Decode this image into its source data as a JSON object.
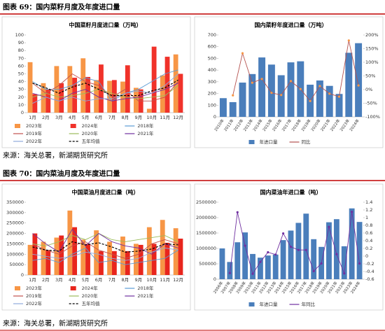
{
  "captions": [
    "图表 69：国内菜籽月度及年度进口量",
    "图表 70：国内菜油月度及年度进口量"
  ],
  "sources": [
    "来源：海关总署，新湖期货研究所",
    "来源：海关总署，新湖期货研究所"
  ],
  "chart_data": [
    {
      "type": "combo",
      "title": "中国菜籽月度进口量（万吨）",
      "legend": "bottom",
      "categories": [
        "1月",
        "2月",
        "3月",
        "4月",
        "5月",
        "6月",
        "7月",
        "8月",
        "9月",
        "10月",
        "11月",
        "12月"
      ],
      "ylim": [
        0,
        100
      ],
      "yticks": [
        0,
        10,
        20,
        30,
        40,
        50,
        60,
        70,
        80,
        90,
        100
      ],
      "series": [
        {
          "name": "2023年",
          "kind": "bar",
          "color": "#f79646",
          "values": [
            65,
            38,
            60,
            60,
            70,
            42,
            41,
            40,
            32,
            5,
            48,
            75
          ]
        },
        {
          "name": "2024年",
          "kind": "bar",
          "color": "#f0322a",
          "values": [
            24,
            30,
            38,
            45,
            46,
            62,
            42,
            61,
            30,
            85,
            72,
            50
          ]
        },
        {
          "name": "2018年",
          "kind": "line",
          "color": "#5b9bd5",
          "values": [
            40,
            30,
            30,
            35,
            45,
            40,
            15,
            25,
            30,
            40,
            50,
            55
          ]
        },
        {
          "name": "2019年",
          "kind": "line",
          "color": "#c0504d",
          "values": [
            38,
            25,
            35,
            50,
            40,
            35,
            20,
            30,
            15,
            15,
            20,
            40
          ]
        },
        {
          "name": "2020年",
          "kind": "line",
          "color": "#9bbb59",
          "values": [
            20,
            25,
            20,
            22,
            25,
            30,
            25,
            20,
            18,
            20,
            22,
            35
          ]
        },
        {
          "name": "2021年",
          "kind": "line",
          "color": "#7030a0",
          "values": [
            25,
            20,
            15,
            25,
            30,
            20,
            15,
            18,
            20,
            25,
            30,
            38
          ]
        },
        {
          "name": "2022年",
          "kind": "line",
          "color": "#8faadc",
          "values": [
            12,
            20,
            15,
            20,
            15,
            18,
            18,
            25,
            28,
            25,
            35,
            50
          ]
        },
        {
          "name": "五年均值",
          "kind": "line",
          "color": "#000000",
          "dash": true,
          "values": [
            38,
            32,
            25,
            33,
            38,
            30,
            22,
            22,
            22,
            28,
            32,
            42
          ]
        }
      ]
    },
    {
      "type": "combo",
      "title": "国内菜籽年度进口量（万吨）",
      "legend": "bottom",
      "categories": [
        "2010年",
        "2011年",
        "2012年",
        "2013年",
        "2014年",
        "2015年",
        "2016年",
        "2017年",
        "2018年",
        "2019年",
        "2020年",
        "2021年",
        "2022年",
        "2023年",
        "2024年"
      ],
      "ylim": [
        0,
        700
      ],
      "yticks": [
        0,
        100,
        200,
        300,
        400,
        500,
        600,
        700
      ],
      "y2lim": [
        -100,
        200
      ],
      "y2ticks": [
        {
          "value": -100,
          "label": "-100%"
        },
        {
          "value": -50,
          "label": "-50%"
        },
        {
          "value": 0,
          "label": "0%"
        },
        {
          "value": 50,
          "label": "50%"
        },
        {
          "value": 100,
          "label": "100%"
        },
        {
          "value": 150,
          "label": "150%"
        },
        {
          "value": 200,
          "label": "200%"
        }
      ],
      "series": [
        {
          "name": "年进口量",
          "kind": "bar",
          "color": "#4a7ebb",
          "values": [
            160,
            126,
            293,
            366,
            508,
            447,
            356,
            466,
            475,
            275,
            311,
            265,
            196,
            548,
            630
          ]
        },
        {
          "name": "同比",
          "kind": "line",
          "axis": "y2",
          "marker": true,
          "color": "#b5524f",
          "marker_color": "#f79646",
          "values": [
            null,
            -21,
            133,
            25,
            39,
            -12,
            -20,
            31,
            2,
            -42,
            13,
            -15,
            -26,
            180,
            15
          ]
        }
      ]
    },
    {
      "type": "combo",
      "title": "中国菜油月度进口量（吨）",
      "legend": "bottom",
      "categories": [
        "1月",
        "2月",
        "3月",
        "4月",
        "5月",
        "6月",
        "7月",
        "8月",
        "9月",
        "10月",
        "11月",
        "12月"
      ],
      "ylim": [
        0,
        350000
      ],
      "yticks": [
        0,
        50000,
        100000,
        150000,
        200000,
        250000,
        300000,
        350000
      ],
      "series": [
        {
          "name": "2023年",
          "kind": "bar",
          "color": "#f79646",
          "values": [
            145000,
            160000,
            180000,
            310000,
            170000,
            215000,
            160000,
            185000,
            150000,
            230000,
            265000,
            225000
          ]
        },
        {
          "name": "2024年",
          "kind": "bar",
          "color": "#e8251d",
          "values": [
            200000,
            120000,
            190000,
            230000,
            150000,
            115000,
            115000,
            115000,
            145000,
            150000,
            155000,
            175000
          ]
        },
        {
          "name": "2018年",
          "kind": "line",
          "color": "#5b9bd5",
          "values": [
            70000,
            80000,
            60000,
            100000,
            130000,
            60000,
            70000,
            50000,
            60000,
            70000,
            80000,
            120000
          ]
        },
        {
          "name": "2019年",
          "kind": "line",
          "color": "#c0504d",
          "values": [
            150000,
            120000,
            100000,
            140000,
            160000,
            120000,
            100000,
            80000,
            100000,
            150000,
            170000,
            150000
          ]
        },
        {
          "name": "2020年",
          "kind": "line",
          "color": "#9bbb59",
          "values": [
            150000,
            140000,
            160000,
            190000,
            170000,
            200000,
            170000,
            160000,
            170000,
            180000,
            190000,
            160000
          ]
        },
        {
          "name": "2021年",
          "kind": "line",
          "color": "#7030a0",
          "values": [
            200000,
            150000,
            110000,
            220000,
            140000,
            200000,
            160000,
            140000,
            130000,
            100000,
            150000,
            130000
          ]
        },
        {
          "name": "2022年",
          "kind": "line",
          "color": "#8faadc",
          "values": [
            100000,
            90000,
            80000,
            90000,
            110000,
            100000,
            80000,
            70000,
            80000,
            110000,
            130000,
            120000
          ]
        },
        {
          "name": "五年均值",
          "kind": "line",
          "color": "#000000",
          "dash": true,
          "values": [
            135000,
            120000,
            115000,
            160000,
            145000,
            155000,
            135000,
            110000,
            115000,
            125000,
            150000,
            145000
          ]
        }
      ]
    },
    {
      "type": "combo",
      "title": "国内菜油年进口量（吨）",
      "legend": "bottom",
      "categories": [
        "2006年",
        "2007年",
        "2008年",
        "2009年",
        "2010年",
        "2011年",
        "2012年",
        "2013年",
        "2014年",
        "2015年",
        "2016年",
        "2017年",
        "2018年",
        "2019年",
        "2020年",
        "2021年",
        "2022年",
        "2023年",
        "2024年"
      ],
      "ylim": [
        0,
        2500000
      ],
      "yticks": [
        0,
        500000,
        1000000,
        1500000,
        2000000,
        2500000
      ],
      "y2lim": [
        -0.6,
        1.4
      ],
      "y2ticks": [
        -0.6,
        -0.4,
        -0.2,
        0,
        0.2,
        0.4,
        0.6,
        0.8,
        1,
        1.2,
        1.4
      ],
      "series": [
        {
          "name": "年进口量",
          "kind": "bar",
          "color": "#4a7ebb",
          "values": [
            1000000,
            560000,
            1200000,
            1520000,
            820000,
            700000,
            770000,
            800000,
            1270000,
            1580000,
            1830000,
            2130000,
            1300000,
            1050000,
            1850000,
            1950000,
            1070000,
            2300000,
            1860000
          ]
        },
        {
          "name": "年同比",
          "kind": "line",
          "axis": "y2",
          "marker": true,
          "color": "#7030a0",
          "marker_color": "#7030a0",
          "values": [
            null,
            -0.44,
            1.14,
            0.27,
            -0.46,
            -0.15,
            0.1,
            0.04,
            0.59,
            0.24,
            0.16,
            0.16,
            -0.39,
            -0.19,
            0.76,
            0.05,
            -0.45,
            1.15,
            -0.19
          ]
        }
      ]
    }
  ]
}
